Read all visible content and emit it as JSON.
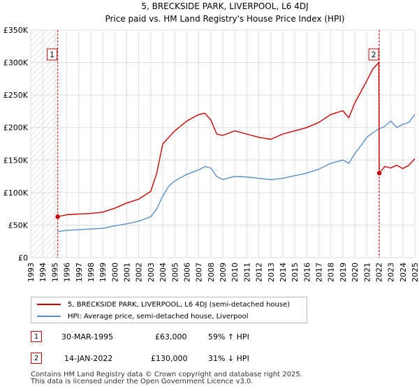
{
  "chart_data": {
    "type": "line",
    "title": "5, BRECKSIDE PARK, LIVERPOOL, L6 4DJ",
    "subtitle": "Price paid vs. HM Land Registry's House Price Index (HPI)",
    "xlim": [
      1993,
      2025
    ],
    "ylim": [
      0,
      350000
    ],
    "x_ticks": [
      1993,
      1994,
      1995,
      1996,
      1997,
      1998,
      1999,
      2000,
      2001,
      2002,
      2003,
      2004,
      2005,
      2006,
      2007,
      2008,
      2009,
      2010,
      2011,
      2012,
      2013,
      2014,
      2015,
      2016,
      2017,
      2018,
      2019,
      2020,
      2021,
      2022,
      2023,
      2024,
      2025
    ],
    "x_tick_labels": [
      "1993",
      "1994",
      "1995",
      "1996",
      "1997",
      "1998",
      "1999",
      "2000",
      "2001",
      "2002",
      "2003",
      "2004",
      "2005",
      "2006",
      "2007",
      "2008",
      "2009",
      "2010",
      "2011",
      "2012",
      "2013",
      "2014",
      "2015",
      "2016",
      "2017",
      "2018",
      "2019",
      "2020",
      "2021",
      "2022",
      "2023",
      "2024",
      "2025"
    ],
    "y_ticks": [
      0,
      50000,
      100000,
      150000,
      200000,
      250000,
      300000,
      350000
    ],
    "y_tick_labels": [
      "£0",
      "£50K",
      "£100K",
      "£150K",
      "£200K",
      "£250K",
      "£300K",
      "£350K"
    ],
    "grid": true,
    "hatch_before": 1995.25,
    "series": [
      {
        "name": "5, BRECKSIDE PARK, LIVERPOOL, L6 4DJ (semi-detached house)",
        "color": "#cc0000",
        "x": [
          1995.25,
          1996,
          1997,
          1998,
          1999,
          2000,
          2001,
          2002,
          2003,
          2003.5,
          2004,
          2004.5,
          2005,
          2006,
          2007,
          2007.5,
          2008,
          2008.5,
          2009,
          2010,
          2011,
          2012,
          2013,
          2014,
          2015,
          2016,
          2017,
          2018,
          2019,
          2019.5,
          2020,
          2020.5,
          2021,
          2021.5,
          2022.0,
          2022.04,
          2022.5,
          2023,
          2023.5,
          2024,
          2024.5,
          2025
        ],
        "y": [
          63000,
          66000,
          67000,
          68000,
          70000,
          76000,
          84000,
          90000,
          102000,
          130000,
          175000,
          185000,
          195000,
          210000,
          220000,
          222000,
          212000,
          190000,
          188000,
          195000,
          190000,
          185000,
          182000,
          190000,
          195000,
          200000,
          208000,
          220000,
          226000,
          215000,
          238000,
          255000,
          272000,
          290000,
          300000,
          130000,
          140000,
          138000,
          142000,
          137000,
          142000,
          152000
        ]
      },
      {
        "name": "HPI: Average price, semi-detached house, Liverpool",
        "color": "#5b8fc7",
        "x": [
          1995.25,
          1996,
          1997,
          1998,
          1999,
          2000,
          2001,
          2002,
          2003,
          2003.5,
          2004,
          2004.5,
          2005,
          2006,
          2007,
          2007.5,
          2008,
          2008.5,
          2009,
          2010,
          2011,
          2012,
          2013,
          2014,
          2015,
          2016,
          2017,
          2018,
          2019,
          2019.5,
          2020,
          2020.5,
          2021,
          2021.5,
          2022.0,
          2022.5,
          2023,
          2023.5,
          2024,
          2024.5,
          2025
        ],
        "y": [
          40000,
          42000,
          43000,
          44000,
          45000,
          49000,
          52000,
          56000,
          63000,
          75000,
          95000,
          110000,
          118000,
          128000,
          135000,
          140000,
          138000,
          125000,
          120000,
          125000,
          124000,
          122000,
          120000,
          122000,
          126000,
          130000,
          136000,
          145000,
          150000,
          145000,
          160000,
          172000,
          185000,
          192000,
          198000,
          202000,
          210000,
          200000,
          205000,
          208000,
          220000
        ]
      }
    ],
    "sales": [
      {
        "label": "1",
        "x": 1995.25,
        "y": 63000
      },
      {
        "label": "2",
        "x": 2022.04,
        "y": 130000
      }
    ]
  },
  "legend": {
    "property": "5, BRECKSIDE PARK, LIVERPOOL, L6 4DJ (semi-detached house)",
    "hpi": "HPI: Average price, semi-detached house, Liverpool"
  },
  "transactions": [
    {
      "num": "1",
      "date": "30-MAR-1995",
      "price": "£63,000",
      "hpi": "59% ↑ HPI"
    },
    {
      "num": "2",
      "date": "14-JAN-2022",
      "price": "£130,000",
      "hpi": "31% ↓ HPI"
    }
  ],
  "footer": {
    "line1": "Contains HM Land Registry data © Crown copyright and database right 2025.",
    "line2": "This data is licensed under the Open Government Licence v3.0."
  }
}
